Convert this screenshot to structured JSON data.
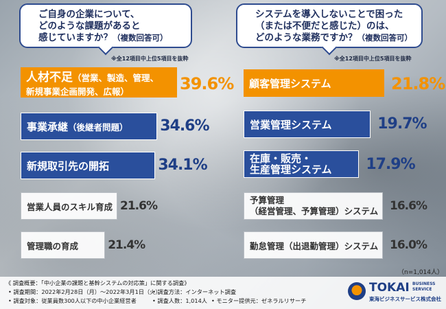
{
  "left_question": {
    "lines": [
      "ご自身の企業について、",
      "どのような課題があると",
      "感じていますか？"
    ],
    "suffix": "（複数回答可）",
    "note": "※全12項目中上位5項目を抜粋"
  },
  "right_question": {
    "lines": [
      "システムを導入しないことで困った",
      "（または不便だと感じた）のは、",
      "どのような業務ですか？"
    ],
    "suffix": "（複数回答可）",
    "note": "※全12項目中上位5項目を抜粋"
  },
  "chart_data": [
    {
      "type": "bar",
      "categories": [
        "人材不足（営業、製造、管理、新規事業企画開発、広報）",
        "事業承継（後継者問題）",
        "新規取引先の開拓",
        "営業人員のスキル育成",
        "管理職の育成"
      ],
      "values": [
        39.6,
        34.6,
        34.1,
        21.6,
        21.4
      ],
      "labels": [
        "39.6%",
        "34.6%",
        "34.1%",
        "21.6%",
        "21.4%"
      ],
      "unit": "%"
    },
    {
      "type": "bar",
      "categories": [
        "顧客管理システム",
        "営業管理システム",
        "在庫・販売・生産管理システム",
        "予算管理（経営管理、予算管理）システム",
        "勤怠管理（出退勤管理）システム"
      ],
      "values": [
        21.8,
        19.7,
        17.9,
        16.6,
        16.0
      ],
      "labels": [
        "21.8%",
        "19.7%",
        "17.9%",
        "16.6%",
        "16.0%"
      ],
      "unit": "%"
    }
  ],
  "left_bars": [
    {
      "main": "人材不足",
      "sub": "（営業、製造、管理、",
      "sub2": "新規事業企画開発、広報）"
    },
    {
      "main": "事業承継",
      "sub": "（後継者問題）"
    },
    {
      "main": "新規取引先の開拓"
    },
    {
      "main": "営業人員のスキル育成"
    },
    {
      "main": "管理職の育成"
    }
  ],
  "right_bars": [
    {
      "main": "顧客管理システム"
    },
    {
      "main": "営業管理システム"
    },
    {
      "line1": "在庫・販売・",
      "line2": "生産管理システム"
    },
    {
      "line1": "予算管理",
      "line2": "（経営管理、予算管理）システム"
    },
    {
      "main": "勤怠管理（出退勤管理）システム"
    }
  ],
  "sample_size": "（n=1,014人）",
  "footer": {
    "title": "《 調査概要：「中小企業の課題と基幹システムの対応策」に関する調査》",
    "period": "• 調査期間：2022年2月28日（月）～2022年3月1日（火）",
    "method": "• 調査方法：インターネット調査",
    "target": "• 調査対象：従業員数300人以下の中小企業経営者",
    "count": "• 調査人数：1,014人",
    "monitor": "• モニター提供元：ゼネラルリサーチ"
  },
  "logo": {
    "name": "TOKAI",
    "tag1": "BUSINESS",
    "tag2": "SERVICE",
    "company": "東海ビジネスサービス株式会社"
  }
}
